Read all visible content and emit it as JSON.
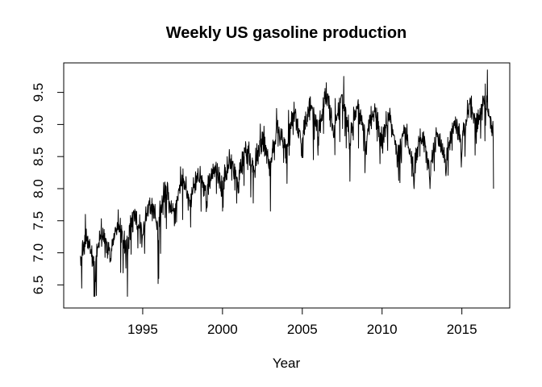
{
  "figure": {
    "background": "#ffffff",
    "foreground": "#000000"
  },
  "chart_data": {
    "type": "line",
    "title": "Weekly US gasoline production",
    "xlabel": "Year",
    "ylabel": "",
    "grid": false,
    "legend": "none",
    "box_around_plot": true,
    "line_color": "#000000",
    "x_ticks": [
      1995,
      2000,
      2005,
      2010,
      2015
    ],
    "x_tick_labels": [
      "1995",
      "2000",
      "2005",
      "2010",
      "2015"
    ],
    "y_ticks": [
      6.5,
      7.0,
      7.5,
      8.0,
      8.5,
      9.0,
      9.5
    ],
    "y_tick_labels": [
      "6.5",
      "7.0",
      "7.5",
      "8.0",
      "8.5",
      "9.0",
      "9.5"
    ],
    "xlim": [
      1990.05,
      2018.0
    ],
    "ylim": [
      6.14,
      9.96
    ],
    "series": {
      "name": "weekly-us-gasoline-production",
      "start": 1991.1,
      "end": 2017.0,
      "frequency_per_year": 52,
      "trend_anchors": [
        [
          1991.1,
          7.0
        ],
        [
          1992,
          7.05
        ],
        [
          1993,
          7.2
        ],
        [
          1994,
          7.3
        ],
        [
          1995,
          7.5
        ],
        [
          1996,
          7.68
        ],
        [
          1997,
          7.85
        ],
        [
          1998,
          8.05
        ],
        [
          1999,
          8.12
        ],
        [
          2000,
          8.25
        ],
        [
          2001,
          8.35
        ],
        [
          2002,
          8.55
        ],
        [
          2003,
          8.65
        ],
        [
          2004,
          8.85
        ],
        [
          2005,
          9.0
        ],
        [
          2006,
          9.15
        ],
        [
          2007,
          9.22
        ],
        [
          2008,
          9.1
        ],
        [
          2009,
          9.0
        ],
        [
          2010,
          9.0
        ],
        [
          2011,
          8.82
        ],
        [
          2012,
          8.55
        ],
        [
          2013,
          8.55
        ],
        [
          2014,
          8.7
        ],
        [
          2015,
          8.95
        ],
        [
          2016,
          9.25
        ],
        [
          2017,
          9.1
        ]
      ],
      "seasonal_amplitude": 0.18,
      "noise_sd": 0.1,
      "random_dip_probability": 0.05,
      "random_dip_depth": 0.45,
      "winter_dip_depth": 0.3,
      "clamp": [
        6.32,
        9.86
      ],
      "seed": 1371,
      "spike_events": [
        [
          1991.17,
          6.45
        ],
        [
          1992.05,
          6.55
        ],
        [
          1994.05,
          6.32
        ],
        [
          1996.0,
          6.6
        ],
        [
          1998.0,
          7.4
        ],
        [
          2000.0,
          7.65
        ],
        [
          2003.0,
          7.65
        ],
        [
          2005.7,
          8.45
        ],
        [
          2007.6,
          9.75
        ],
        [
          2012.0,
          8.0
        ],
        [
          2013.0,
          8.0
        ],
        [
          2014.0,
          8.2
        ],
        [
          2016.6,
          9.85
        ],
        [
          2016.996,
          8.0
        ]
      ]
    },
    "approx_extremes": {
      "min_value": 6.32,
      "min_year": 1994.0,
      "max_value": 9.85,
      "max_year": 2016.6,
      "first_value": 7.0,
      "last_value": 8.0
    }
  }
}
